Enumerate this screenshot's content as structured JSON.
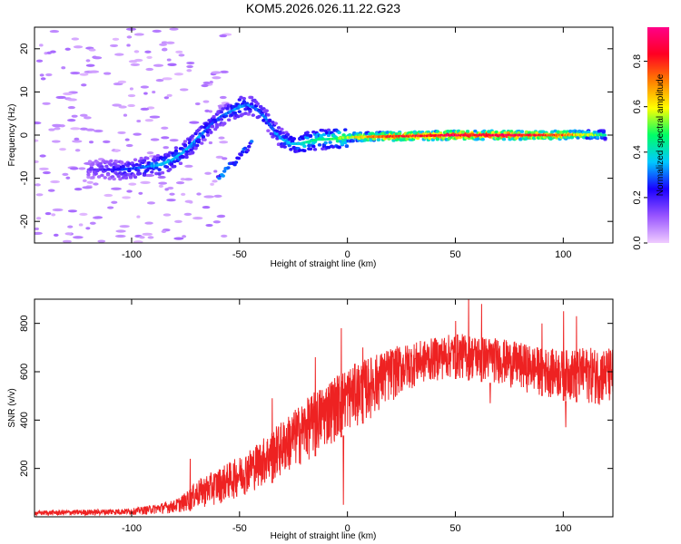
{
  "title": "KOM5.2026.026.11.22.G23",
  "colors": {
    "line": "#ee2222",
    "axis": "#000000",
    "colormap": [
      "#f0ccff",
      "#9955ff",
      "#1a00ff",
      "#00c8ff",
      "#00ff66",
      "#ffff00",
      "#ff7f00",
      "#ff0022",
      "#ff0088"
    ]
  },
  "chart_data": [
    {
      "type": "heatmap",
      "xlabel": "Height of straight line (km)",
      "ylabel": "Frequency (Hz)",
      "xlim": [
        -145,
        123
      ],
      "ylim": [
        -25,
        25
      ],
      "xticks": [
        -100,
        -50,
        0,
        50,
        100
      ],
      "xtick_labels": [
        "-100",
        "-50",
        "0",
        "50",
        "100"
      ],
      "yticks": [
        -20,
        -10,
        0,
        10,
        20
      ],
      "ytick_labels": [
        "-20",
        "-10",
        "0",
        "10",
        "20"
      ],
      "colorbar": {
        "label": "Normalized spectral amplitude",
        "range": [
          0,
          0.95
        ],
        "ticks": [
          0.0,
          0.2,
          0.4,
          0.6,
          0.8
        ],
        "tick_labels": [
          "0.0",
          "0.2",
          "0.4",
          "0.6",
          "0.8"
        ]
      },
      "ridge": {
        "x": [
          -120,
          -105,
          -95,
          -88,
          -82,
          -76,
          -70,
          -66,
          -62,
          -58,
          -54,
          -50,
          -46,
          -42,
          -38,
          -34,
          -30,
          -26,
          -22,
          -18,
          -14,
          -10,
          -5,
          0,
          10,
          20,
          30,
          40,
          50,
          60,
          70,
          80,
          90,
          100,
          110,
          120
        ],
        "freq": [
          -8,
          -8,
          -7.5,
          -7,
          -6,
          -4,
          -1,
          1,
          3,
          4.5,
          5.5,
          6.5,
          7,
          6,
          4,
          1,
          -1,
          -2,
          -2,
          -1.5,
          -1,
          -1,
          -0.8,
          -0.5,
          -0.4,
          -0.3,
          -0.2,
          -0.1,
          0,
          0,
          0,
          0,
          0,
          0,
          0.1,
          0
        ],
        "amp": [
          0.15,
          0.25,
          0.3,
          0.35,
          0.35,
          0.35,
          0.35,
          0.3,
          0.25,
          0.3,
          0.3,
          0.35,
          0.3,
          0.3,
          0.3,
          0.3,
          0.35,
          0.35,
          0.4,
          0.45,
          0.45,
          0.45,
          0.5,
          0.55,
          0.7,
          0.8,
          0.8,
          0.85,
          0.9,
          0.85,
          0.9,
          0.85,
          0.8,
          0.75,
          0.6,
          0.45
        ]
      },
      "secondary_track": {
        "x": [
          -60,
          -56,
          -52,
          -48,
          -44
        ],
        "freq": [
          -10,
          -8,
          -6,
          -4,
          -2
        ],
        "amp": 0.3
      }
    },
    {
      "type": "line",
      "xlabel": "Height of straight line (km)",
      "ylabel": "SNR (v/v)",
      "xlim": [
        -145,
        123
      ],
      "ylim": [
        0,
        900
      ],
      "xticks": [
        -100,
        -50,
        0,
        50,
        100
      ],
      "xtick_labels": [
        "-100",
        "-50",
        "0",
        "50",
        "100"
      ],
      "yticks": [
        200,
        400,
        600,
        800
      ],
      "ytick_labels": [
        "200",
        "400",
        "600",
        "800"
      ],
      "envelope": {
        "x": [
          -145,
          -120,
          -100,
          -90,
          -80,
          -75,
          -70,
          -60,
          -50,
          -40,
          -30,
          -20,
          -10,
          0,
          10,
          20,
          30,
          40,
          50,
          60,
          70,
          80,
          90,
          100,
          110,
          123
        ],
        "low": [
          5,
          5,
          8,
          10,
          15,
          20,
          30,
          50,
          80,
          120,
          160,
          220,
          280,
          350,
          400,
          470,
          530,
          560,
          570,
          560,
          550,
          520,
          500,
          480,
          470,
          450
        ],
        "high": [
          25,
          30,
          35,
          50,
          70,
          100,
          150,
          200,
          250,
          320,
          400,
          480,
          560,
          620,
          660,
          700,
          720,
          740,
          760,
          750,
          740,
          720,
          700,
          690,
          700,
          700
        ]
      },
      "spikes": [
        {
          "x": -73,
          "y": 240
        },
        {
          "x": -35,
          "y": 490
        },
        {
          "x": -15,
          "y": 660
        },
        {
          "x": -3,
          "y": 780
        },
        {
          "x": -2,
          "y": 50
        },
        {
          "x": 7,
          "y": 700
        },
        {
          "x": 50,
          "y": 810
        },
        {
          "x": 56,
          "y": 910
        },
        {
          "x": 62,
          "y": 880
        },
        {
          "x": 66,
          "y": 470
        },
        {
          "x": 90,
          "y": 800
        },
        {
          "x": 100,
          "y": 850
        },
        {
          "x": 101,
          "y": 370
        },
        {
          "x": 106,
          "y": 830
        }
      ]
    }
  ]
}
